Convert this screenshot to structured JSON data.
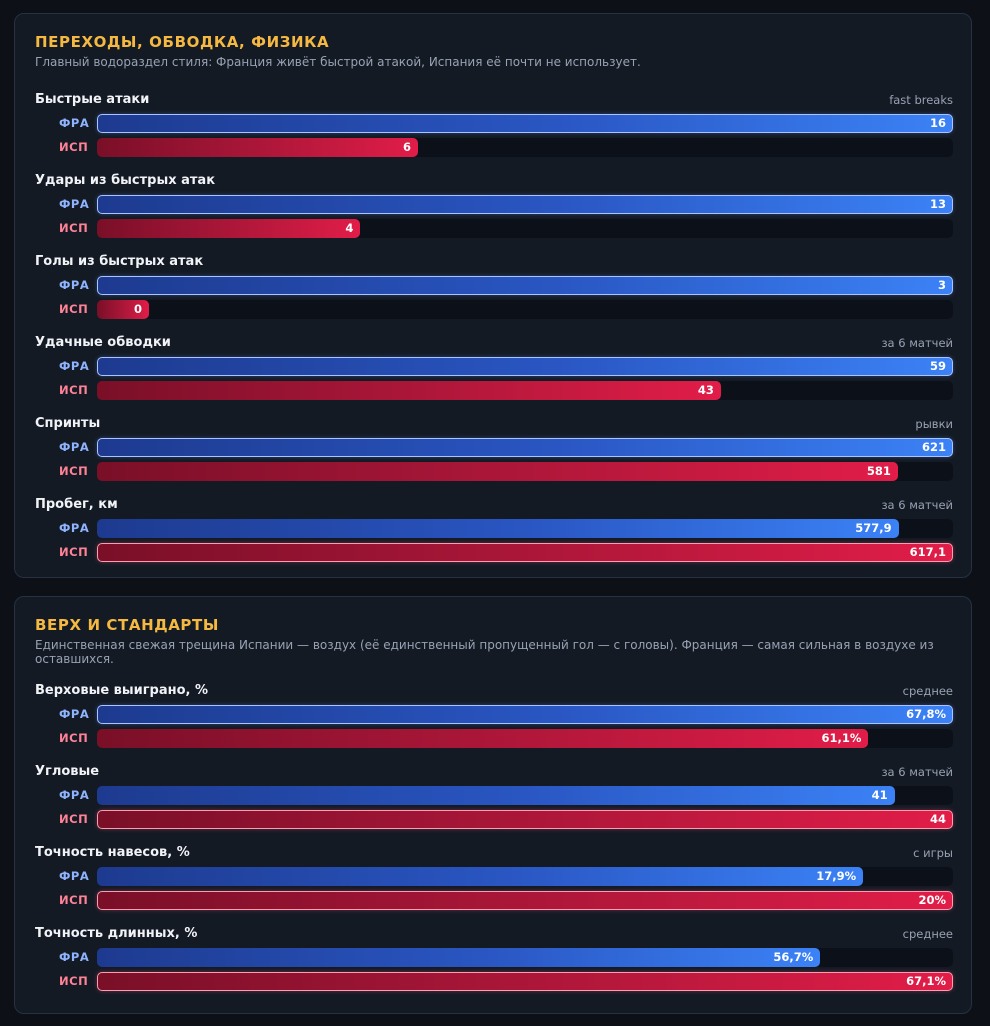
{
  "teams": {
    "fra": "ФРА",
    "esp": "ИСП"
  },
  "colors": {
    "fra": "#3b82f6",
    "esp": "#e11d48",
    "title": "#f5b942"
  },
  "chart_data": [
    {
      "type": "bar",
      "orientation": "horizontal",
      "title": "ПЕРЕХОДЫ, ОБВОДКА, ФИЗИКА",
      "subtitle": "Главный водораздел стиля: Франция живёт быстрой атакой, Испания её почти не использует.",
      "series_names": [
        "ФРА",
        "ИСП"
      ],
      "metrics": [
        {
          "label": "Быстрые атаки",
          "note": "fast breaks",
          "fra": 16,
          "esp": 6,
          "fra_text": "16",
          "esp_text": "6"
        },
        {
          "label": "Удары из быстрых атак",
          "note": "",
          "fra": 13,
          "esp": 4,
          "fra_text": "13",
          "esp_text": "4"
        },
        {
          "label": "Голы из быстрых атак",
          "note": "",
          "fra": 3,
          "esp": 0,
          "fra_text": "3",
          "esp_text": "0"
        },
        {
          "label": "Удачные обводки",
          "note": "за 6 матчей",
          "fra": 59,
          "esp": 43,
          "fra_text": "59",
          "esp_text": "43"
        },
        {
          "label": "Спринты",
          "note": "рывки",
          "fra": 621,
          "esp": 581,
          "fra_text": "621",
          "esp_text": "581"
        },
        {
          "label": "Пробег, км",
          "note": "за 6 матчей",
          "fra": 577.9,
          "esp": 617.1,
          "fra_text": "577,9",
          "esp_text": "617,1"
        }
      ]
    },
    {
      "type": "bar",
      "orientation": "horizontal",
      "title": "ВЕРХ И СТАНДАРТЫ",
      "subtitle": "Единственная свежая трещина Испании — воздух (её единственный пропущенный гол — с головы). Франция — самая сильная в воздухе из оставшихся.",
      "series_names": [
        "ФРА",
        "ИСП"
      ],
      "metrics": [
        {
          "label": "Верховые выиграно, %",
          "note": "среднее",
          "fra": 67.8,
          "esp": 61.1,
          "fra_text": "67,8%",
          "esp_text": "61,1%"
        },
        {
          "label": "Угловые",
          "note": "за 6 матчей",
          "fra": 41,
          "esp": 44,
          "fra_text": "41",
          "esp_text": "44"
        },
        {
          "label": "Точность навесов, %",
          "note": "с игры",
          "fra": 17.9,
          "esp": 20,
          "fra_text": "17,9%",
          "esp_text": "20%"
        },
        {
          "label": "Точность длинных, %",
          "note": "среднее",
          "fra": 56.7,
          "esp": 67.1,
          "fra_text": "56,7%",
          "esp_text": "67,1%"
        }
      ]
    }
  ]
}
